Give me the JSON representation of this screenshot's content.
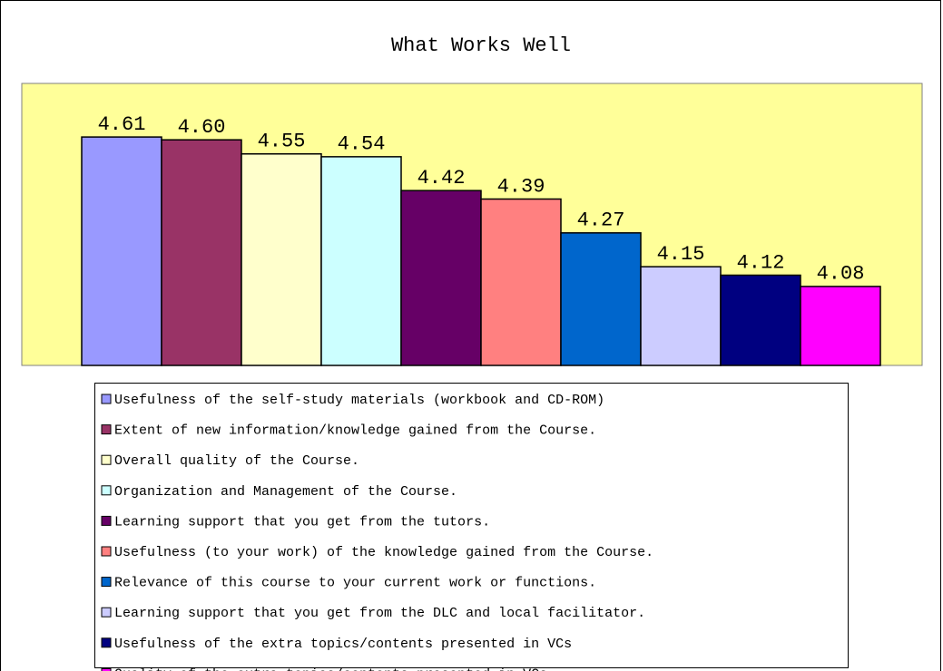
{
  "chart_data": {
    "type": "bar",
    "title": "What Works Well",
    "ylim": [
      3.8,
      4.8
    ],
    "series": [
      {
        "name": "Usefulness of the self-study materials (workbook and CD-ROM)",
        "color": "#9999ff",
        "values": [
          4.61
        ],
        "value_labels": [
          "4.61"
        ]
      },
      {
        "name": "Extent of new information/knowledge gained from the Course.",
        "color": "#993366",
        "values": [
          4.6
        ],
        "value_labels": [
          "4.60"
        ]
      },
      {
        "name": "Overall quality of the Course.",
        "color": "#ffffcc",
        "values": [
          4.55
        ],
        "value_labels": [
          "4.55"
        ]
      },
      {
        "name": "Organization and Management of the Course.",
        "color": "#ccffff",
        "values": [
          4.54
        ],
        "value_labels": [
          "4.54"
        ]
      },
      {
        "name": "Learning support that you get from the tutors.",
        "color": "#660066",
        "values": [
          4.42
        ],
        "value_labels": [
          "4.42"
        ]
      },
      {
        "name": "Usefulness (to your work) of the knowledge gained from the Course.",
        "color": "#ff8080",
        "values": [
          4.39
        ],
        "value_labels": [
          "4.39"
        ]
      },
      {
        "name": "Relevance of this course to your current work or functions.",
        "color": "#0066cc",
        "values": [
          4.27
        ],
        "value_labels": [
          "4.27"
        ]
      },
      {
        "name": "Learning support that you get from the DLC and local facilitator.",
        "color": "#ccccff",
        "values": [
          4.15
        ],
        "value_labels": [
          "4.15"
        ]
      },
      {
        "name": "Usefulness of the extra topics/contents presented in VCs",
        "color": "#000080",
        "values": [
          4.12
        ],
        "value_labels": [
          "4.12"
        ]
      },
      {
        "name": "Quality of the extra topics/contents presented in VCs.",
        "color": "#ff00ff",
        "values": [
          4.08
        ],
        "value_labels": [
          "4.08"
        ]
      }
    ]
  }
}
